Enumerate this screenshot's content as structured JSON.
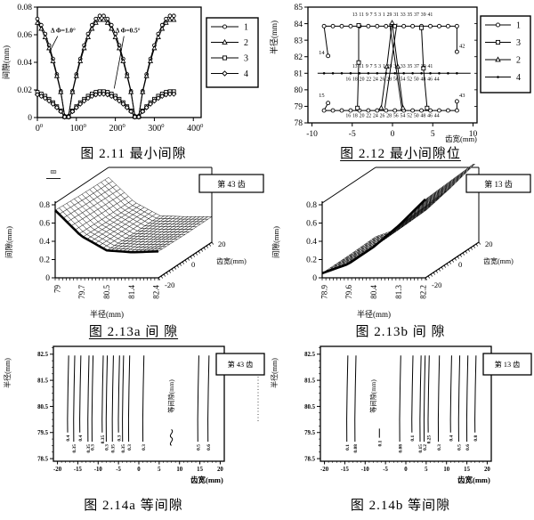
{
  "page": {
    "background": "#ffffff",
    "ink": "#000000"
  },
  "chart_data": {
    "fig211": {
      "type": "line",
      "caption": "图 2.11 最小间隙",
      "ylabel": "间隙(mm)",
      "ylim": [
        0,
        0.08
      ],
      "ytick_values": [
        0,
        0.02,
        0.04,
        0.06,
        0.08
      ],
      "ytick_labels": [
        "0",
        "0.02",
        "0.04",
        "0.06",
        "0.08"
      ],
      "xlim": [
        0,
        420
      ],
      "xtick_values": [
        0,
        100,
        200,
        300,
        400
      ],
      "xtick_labels": [
        "0",
        "100",
        "200",
        "300",
        "400"
      ],
      "xtick_superscript": "0",
      "x_start": 0,
      "x_step": 10,
      "curves": {
        "big": [
          0.0715,
          0.067,
          0.0606,
          0.0523,
          0.0425,
          0.0313,
          0.0192,
          0.001,
          0.001,
          0.0192,
          0.0313,
          0.0425,
          0.0523,
          0.0606,
          0.067,
          0.0715,
          0.0737,
          0.0737,
          0.0715,
          0.067,
          0.0606,
          0.0523,
          0.0425,
          0.0313,
          0.0192,
          0.001,
          0.001,
          0.0192,
          0.0313,
          0.0425,
          0.0523,
          0.0606,
          0.067,
          0.0715,
          0.0737,
          0.0737
        ],
        "small": [
          0.0184,
          0.0172,
          0.0156,
          0.0134,
          0.0109,
          0.008,
          0.0049,
          0.0005,
          0.0005,
          0.0049,
          0.008,
          0.0109,
          0.0134,
          0.0156,
          0.0172,
          0.0184,
          0.0189,
          0.0189,
          0.0184,
          0.0172,
          0.0156,
          0.0134,
          0.0109,
          0.008,
          0.0049,
          0.0005,
          0.0005,
          0.0049,
          0.008,
          0.0109,
          0.0134,
          0.0156,
          0.0172,
          0.0184,
          0.0189,
          0.0189
        ]
      },
      "series": [
        {
          "name": "1",
          "marker": "circle",
          "curve": "big",
          "scale": 1
        },
        {
          "name": "2",
          "marker": "triangle",
          "curve": "big",
          "scale": 0.96
        },
        {
          "name": "3",
          "marker": "square",
          "curve": "small",
          "scale": 1
        },
        {
          "name": "4",
          "marker": "diamond",
          "curve": "small",
          "scale": 0.9
        }
      ],
      "legend": [
        {
          "label": "1",
          "marker": "circle"
        },
        {
          "label": "2",
          "marker": "triangle"
        },
        {
          "label": "3",
          "marker": "square"
        },
        {
          "label": "4",
          "marker": "diamond"
        }
      ],
      "annotations": [
        {
          "text": "Δ Φ=1.0°",
          "tx": 66,
          "ty": 0.0615,
          "lx1": 52,
          "ly1": 0.059,
          "lx2": 30,
          "ly2": 0.047
        },
        {
          "text": "Δ Φ=0.5°",
          "tx": 232,
          "ty": 0.0615,
          "lx1": 222,
          "ly1": 0.059,
          "lx2": 197,
          "ly2": 0.021
        }
      ]
    },
    "fig212": {
      "type": "line",
      "caption": "图 2.12 最小间隙位",
      "ylabel": "半径(mm)",
      "xlabel": "齿宽(mm)",
      "ylim": [
        78,
        85
      ],
      "ytick_values": [
        78,
        79,
        80,
        81,
        82,
        83,
        84,
        85
      ],
      "xlim": [
        -10.5,
        10.5
      ],
      "xtick_values": [
        -10,
        -5,
        0,
        5,
        10
      ],
      "legend": [
        {
          "label": "1",
          "marker": "circle"
        },
        {
          "label": "3",
          "marker": "square"
        },
        {
          "label": "2",
          "marker": "triangle"
        },
        {
          "label": "4",
          "marker": "dot"
        }
      ],
      "series": [
        {
          "marker": "circle",
          "points": [
            [
              -8,
              82.05
            ],
            [
              -8.5,
              83.85
            ],
            [
              -7.4,
              83.85
            ],
            [
              -6.3,
              83.85
            ],
            [
              -5.2,
              83.85
            ],
            [
              -4.1,
              83.85
            ],
            [
              -3,
              83.85
            ],
            [
              -1.9,
              83.85
            ],
            [
              -0.8,
              83.85
            ],
            [
              0.3,
              83.85
            ],
            [
              1.4,
              83.85
            ],
            [
              2.5,
              83.85
            ],
            [
              3.6,
              83.85
            ],
            [
              4.7,
              83.85
            ],
            [
              5.8,
              83.85
            ],
            [
              6.9,
              83.85
            ],
            [
              8,
              83.85
            ],
            [
              8,
              82.3
            ]
          ]
        },
        {
          "marker": "circle",
          "points": [
            [
              -8,
              79.2
            ],
            [
              -8.5,
              78.75
            ],
            [
              -7.4,
              78.75
            ],
            [
              -6.3,
              78.75
            ],
            [
              -5.2,
              78.75
            ],
            [
              -4.1,
              78.75
            ],
            [
              -3,
              78.75
            ],
            [
              -1.9,
              78.75
            ],
            [
              -0.8,
              78.75
            ],
            [
              0.3,
              78.75
            ],
            [
              1.4,
              78.75
            ],
            [
              2.5,
              78.75
            ],
            [
              3.6,
              78.75
            ],
            [
              4.7,
              78.75
            ],
            [
              5.8,
              78.75
            ],
            [
              6.9,
              78.75
            ],
            [
              8,
              78.75
            ],
            [
              8,
              79.3
            ]
          ]
        },
        {
          "marker": "square",
          "points": [
            [
              -4.2,
              83.9
            ],
            [
              -4.2,
              81.65
            ],
            [
              -4.35,
              78.9
            ]
          ]
        },
        {
          "marker": "square",
          "points": [
            [
              3.6,
              83.75
            ],
            [
              3.85,
              81.3
            ],
            [
              4.3,
              78.9
            ]
          ]
        },
        {
          "marker": "triangle",
          "points": [
            [
              -1.4,
              78.9
            ],
            [
              -0.7,
              81.4
            ],
            [
              -0.05,
              84.05
            ],
            [
              0.65,
              81.4
            ],
            [
              1.3,
              78.9
            ]
          ]
        },
        {
          "marker": "none",
          "points": [
            [
              -0.95,
              78.9
            ],
            [
              0.55,
              84.0
            ]
          ]
        },
        {
          "marker": "none",
          "points": [
            [
              -0.35,
              84.0
            ],
            [
              1.15,
              78.9
            ]
          ]
        },
        {
          "marker": "dot",
          "points": [
            [
              -9.3,
              81
            ],
            [
              9.7,
              81
            ]
          ],
          "marker_xs": [
            -8.5,
            -7.4,
            -6.3,
            -5.2,
            -4.1,
            -3,
            -1.9,
            -0.8,
            0.3,
            1.4,
            2.5,
            3.6,
            4.7,
            5.8,
            6.9,
            8
          ]
        }
      ],
      "label_rows": [
        {
          "y": 84.45,
          "text": "13 11 9 7  5   3   1 29 31 33 35 37 39 41"
        },
        {
          "y": 81.35,
          "text": "13 11 9 7  5   3   1 29 31 33 35 37 39 41"
        },
        {
          "y": 80.55,
          "text": "16 18 20 22 24 26 28  56 54 52 50 48 46 44"
        },
        {
          "y": 78.35,
          "text": "16 18 20 22 24 26 28  56 54 52 50 48 46 44"
        }
      ],
      "side_labels": [
        {
          "x": -8.8,
          "y": 82.15,
          "text": "14"
        },
        {
          "x": -8.8,
          "y": 79.55,
          "text": "15"
        },
        {
          "x": 8.65,
          "y": 82.55,
          "text": "42"
        },
        {
          "x": 8.65,
          "y": 79.55,
          "text": "43"
        }
      ]
    },
    "fig213a": {
      "type": "surface3d",
      "caption": "图 2.13a 间 隙",
      "zlabel": "间隙(mm)",
      "xlabel": "半径(mm)",
      "ylabel": "齿宽(mm)",
      "tooth_label": "第 43 齿",
      "artifact": "罒",
      "ztick_values": [
        0,
        0.2,
        0.4,
        0.6,
        0.8
      ],
      "ztick_labels": [
        "0",
        "0.2",
        "0.4",
        "0.6",
        "0.8"
      ],
      "xtick_labels": [
        "79",
        "79.7",
        "80.5",
        "81.4",
        "82.4"
      ],
      "ytick_labels": [
        "-20",
        "0",
        "20"
      ],
      "z_grid": {
        "radius": [
          79,
          79.7,
          80.5,
          81.4,
          82.4
        ],
        "width": [
          -20,
          0,
          20
        ],
        "z": [
          [
            0.74,
            0.72,
            0.71
          ],
          [
            0.46,
            0.45,
            0.44
          ],
          [
            0.3,
            0.29,
            0.29
          ],
          [
            0.28,
            0.28,
            0.28
          ],
          [
            0.29,
            0.28,
            0.28
          ]
        ]
      }
    },
    "fig213b": {
      "type": "surface3d",
      "caption": "图 2.13b 间 隙",
      "zlabel": "间隙(mm)",
      "xlabel": "半径(mm)",
      "ylabel": "齿宽(mm)",
      "tooth_label": "第 13 齿",
      "ztick_values": [
        0,
        0.2,
        0.4,
        0.6,
        0.8
      ],
      "ztick_labels": [
        "0",
        "0.2",
        "0.4",
        "0.6",
        "0.8"
      ],
      "xtick_labels": [
        "78.9",
        "79.6",
        "80.4",
        "81.3",
        "82.2"
      ],
      "ytick_labels": [
        "-20",
        "0",
        "20"
      ],
      "z_grid": {
        "radius": [
          78.9,
          79.6,
          80.4,
          81.3,
          82.2
        ],
        "width": [
          -20,
          0,
          20
        ],
        "z": [
          [
            0.05,
            0.05,
            0.06
          ],
          [
            0.15,
            0.15,
            0.16
          ],
          [
            0.34,
            0.35,
            0.36
          ],
          [
            0.58,
            0.6,
            0.62
          ],
          [
            0.86,
            0.88,
            0.9
          ]
        ]
      }
    },
    "fig214a": {
      "type": "contour",
      "caption": "图 2.14a 等间隙",
      "ylabel": "半径(mm)",
      "xlabel": "齿宽(mm)",
      "ylim": [
        78.4,
        82.8
      ],
      "xlim": [
        -21,
        21
      ],
      "ytick_values": [
        82.5,
        81.5,
        80.5,
        79.5,
        78.5
      ],
      "ytick_labels": [
        "82.5",
        "81.5",
        "80.5",
        "79.5",
        "78.5"
      ],
      "xtick_values": [
        -20,
        -15,
        -10,
        -5,
        0,
        5,
        10,
        15,
        20
      ],
      "tooth_label": "第 43 齿",
      "tooth_dotted": true,
      "annotation": {
        "text": "等间隙(mm)",
        "x": 8,
        "squiggle": true
      },
      "lines": [
        {
          "x": -17.5,
          "label": "0.4",
          "row": 0
        },
        {
          "x": -16,
          "label": "0.35",
          "row": 1
        },
        {
          "x": -14.5,
          "label": "0.4",
          "row": 0
        },
        {
          "x": -12.5,
          "label": "0.35",
          "row": 1
        },
        {
          "x": -11.5,
          "label": "0.3",
          "row": 1
        },
        {
          "x": -9,
          "label": "0.35",
          "row": 0
        },
        {
          "x": -8,
          "label": "0.3",
          "row": 1
        },
        {
          "x": -6.5,
          "label": "0.35",
          "row": 1
        },
        {
          "x": -5,
          "label": "0.3",
          "row": 0
        },
        {
          "x": -4,
          "label": "0.35",
          "row": 1
        },
        {
          "x": -2.5,
          "label": "0.3",
          "row": 1
        },
        {
          "x": 1,
          "label": "0.3",
          "row": 1
        },
        {
          "x": 14.5,
          "label": "0.5",
          "row": 1
        },
        {
          "x": 17,
          "label": "0.6",
          "row": 1
        }
      ]
    },
    "fig214b": {
      "type": "contour",
      "caption": "图 2.14b 等间隙",
      "ylabel": "半径(mm)",
      "xlabel": "齿宽(mm)",
      "ylim": [
        78.4,
        82.8
      ],
      "xlim": [
        -21,
        21
      ],
      "ytick_values": [
        82.5,
        81.5,
        80.5,
        79.5,
        78.5
      ],
      "ytick_labels": [
        "82.5",
        "81.5",
        "80.5",
        "79.5",
        "78.5"
      ],
      "xtick_values": [
        -20,
        -15,
        -10,
        -5,
        0,
        5,
        10,
        15,
        20
      ],
      "tooth_label": "第 13 齿",
      "annotation": {
        "text": "等间隙(mm)",
        "x": -8,
        "squiggle": false
      },
      "lines": [
        {
          "x": -14.5,
          "label": "0.1",
          "row": 1
        },
        {
          "x": -12.5,
          "label": "0.08",
          "row": 1
        },
        {
          "x": -6.5,
          "label": "0.1",
          "row": 1,
          "stub": true
        },
        {
          "x": -1.5,
          "label": "0.08",
          "row": 1
        },
        {
          "x": 1.5,
          "label": "0.1",
          "row": 0
        },
        {
          "x": 3.5,
          "label": "0.15",
          "row": 1
        },
        {
          "x": 4.5,
          "label": "0.2",
          "row": 1
        },
        {
          "x": 5.5,
          "label": "0.25",
          "row": 0
        },
        {
          "x": 8,
          "label": "0.3",
          "row": 1
        },
        {
          "x": 11,
          "label": "0.4",
          "row": 0
        },
        {
          "x": 13,
          "label": "0.5",
          "row": 1
        },
        {
          "x": 15,
          "label": "0.6",
          "row": 1
        },
        {
          "x": 17,
          "label": "0.8",
          "row": 0
        }
      ]
    }
  }
}
